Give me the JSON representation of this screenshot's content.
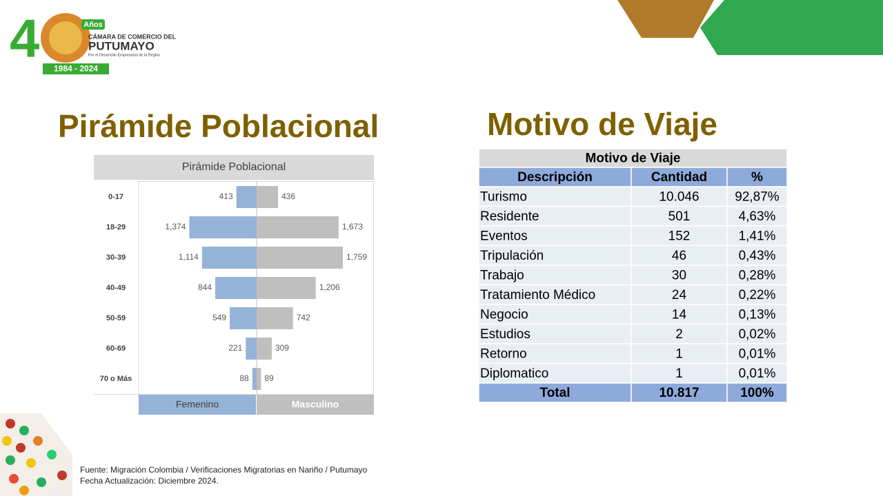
{
  "logo": {
    "digit": "4",
    "badge": "Años",
    "line1": "CÁMARA DE COMERCIO DEL",
    "line2": "PUTUMAYO",
    "tagline": "Por el Desarrollo Empresarial de la Región",
    "years": "1984 - 2024"
  },
  "headings": {
    "left": "Pirámide Poblacional",
    "right": "Motivo de Viaje"
  },
  "chart_data": {
    "type": "pyramid",
    "title": "Pirámide Poblacional",
    "categories": [
      "0-17",
      "18-29",
      "30-39",
      "40-49",
      "50-59",
      "60-69",
      "70 o Más"
    ],
    "series": [
      {
        "name": "Femenino",
        "color": "#95b3d7",
        "values": [
          413,
          1374,
          1114,
          844,
          549,
          221,
          88
        ],
        "value_labels": [
          "413",
          "1,374",
          "1,114",
          "844",
          "549",
          "221",
          "88"
        ]
      },
      {
        "name": "Masculino",
        "color": "#bfbfbf",
        "values": [
          436,
          1673,
          1759,
          1206,
          742,
          309,
          89
        ],
        "value_labels": [
          "436",
          "1,673",
          "1,759",
          "1,206",
          "742",
          "309",
          "89"
        ]
      }
    ]
  },
  "table": {
    "title": "Motivo de Viaje",
    "header": [
      "Descripción",
      "Cantidad",
      "%"
    ],
    "rows": [
      [
        "Turismo",
        "10.046",
        "92,87%"
      ],
      [
        "Residente",
        "501",
        "4,63%"
      ],
      [
        "Eventos",
        "152",
        "1,41%"
      ],
      [
        "Tripulación",
        "46",
        "0,43%"
      ],
      [
        "Trabajo",
        "30",
        "0,28%"
      ],
      [
        "Tratamiento Médico",
        "24",
        "0,22%"
      ],
      [
        "Negocio",
        "14",
        "0,13%"
      ],
      [
        "Estudios",
        "2",
        "0,02%"
      ],
      [
        "Retorno",
        "1",
        "0,01%"
      ],
      [
        "Diplomatico",
        "1",
        "0,01%"
      ]
    ],
    "total": [
      "Total",
      "10.817",
      "100%"
    ]
  },
  "footer": {
    "source": "Fuente: Migración Colombia / Verificaciones Migratorias en Nariño / Putumayo",
    "updated": "Fecha Actualización: Diciembre 2024."
  }
}
